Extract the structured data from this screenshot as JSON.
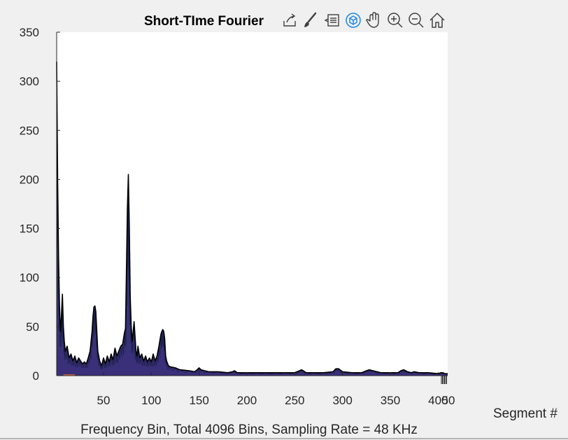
{
  "chart_data": {
    "type": "area",
    "title": "Short-TIme Fourier",
    "xlabel": "Frequency Bin, Total 4096 Bins, Sampling Rate = 48 KHz",
    "zlabel": "Segment #",
    "xlim": [
      1,
      410
    ],
    "ylim": [
      0,
      350
    ],
    "x_ticks": [
      50,
      100,
      150,
      200,
      250,
      300,
      350,
      400
    ],
    "x_tick_labels": [
      "50",
      "100",
      "150",
      "200",
      "250",
      "300",
      "350",
      "400"
    ],
    "y_ticks": [
      0,
      50,
      100,
      150,
      200,
      250,
      300,
      350
    ],
    "y_tick_labels": [
      "0",
      "50",
      "100",
      "150",
      "200",
      "250",
      "300",
      "350"
    ],
    "edge_tick_label": "50",
    "grid": false,
    "series": [
      {
        "x": [
          1,
          2,
          3,
          4,
          5,
          6,
          7,
          8,
          9,
          10,
          12,
          14,
          16,
          18,
          20,
          22,
          24,
          26,
          28,
          30,
          32,
          34,
          36,
          38,
          39,
          40,
          41,
          42,
          43,
          44,
          46,
          48,
          50,
          52,
          54,
          56,
          58,
          60,
          62,
          64,
          66,
          68,
          70,
          72,
          73,
          74,
          75,
          76,
          77,
          78,
          79,
          80,
          82,
          84,
          85,
          86,
          88,
          90,
          92,
          94,
          96,
          98,
          100,
          102,
          104,
          106,
          108,
          110,
          111,
          112,
          113,
          114,
          115,
          116,
          118,
          120,
          125,
          130,
          140,
          145,
          148,
          150,
          152,
          160,
          170,
          180,
          185,
          187,
          190,
          200,
          210,
          220,
          230,
          240,
          250,
          255,
          257,
          259,
          262,
          270,
          280,
          290,
          293,
          296,
          300,
          310,
          320,
          325,
          328,
          332,
          340,
          350,
          358,
          361,
          364,
          366,
          368,
          372,
          375,
          380,
          390,
          400,
          403,
          405,
          407,
          410
        ],
        "values": [
          320,
          200,
          120,
          70,
          45,
          60,
          83,
          50,
          35,
          25,
          30,
          18,
          22,
          15,
          20,
          13,
          18,
          15,
          12,
          14,
          12,
          18,
          25,
          45,
          60,
          70,
          71,
          65,
          45,
          25,
          15,
          10,
          18,
          12,
          20,
          14,
          22,
          16,
          28,
          20,
          25,
          30,
          32,
          44,
          48,
          110,
          170,
          205,
          150,
          80,
          50,
          35,
          55,
          25,
          20,
          30,
          18,
          22,
          15,
          20,
          14,
          18,
          14,
          22,
          15,
          20,
          30,
          42,
          45,
          47,
          45,
          38,
          20,
          15,
          10,
          9,
          8,
          6,
          5,
          4,
          6,
          8,
          6,
          4,
          4,
          3,
          4,
          5,
          3,
          3,
          3,
          3,
          3,
          3,
          3,
          5,
          6,
          5,
          3,
          3,
          3,
          4,
          7,
          7,
          4,
          3,
          3,
          5,
          6,
          5,
          3,
          3,
          3,
          5,
          6,
          5,
          4,
          3,
          4,
          3,
          3,
          2,
          3,
          3,
          2,
          2
        ]
      }
    ]
  },
  "toolbar": {
    "buttons": [
      {
        "name": "export-icon"
      },
      {
        "name": "brush-icon"
      },
      {
        "name": "data-tips-icon"
      },
      {
        "name": "rotate-3d-icon",
        "active": true
      },
      {
        "name": "pan-hand-icon"
      },
      {
        "name": "zoom-in-icon"
      },
      {
        "name": "zoom-out-icon"
      },
      {
        "name": "home-icon"
      }
    ]
  },
  "colors": {
    "figure_bg": "#f0f0f0",
    "axes_bg": "#ffffff",
    "axis_color": "#262626",
    "surface_fill": "#1f2a5c",
    "surface_accent": "#2a7f86",
    "surface_edge": "#000000",
    "toolbar_icon": "#404040",
    "toolbar_active": "#1e88e5"
  }
}
